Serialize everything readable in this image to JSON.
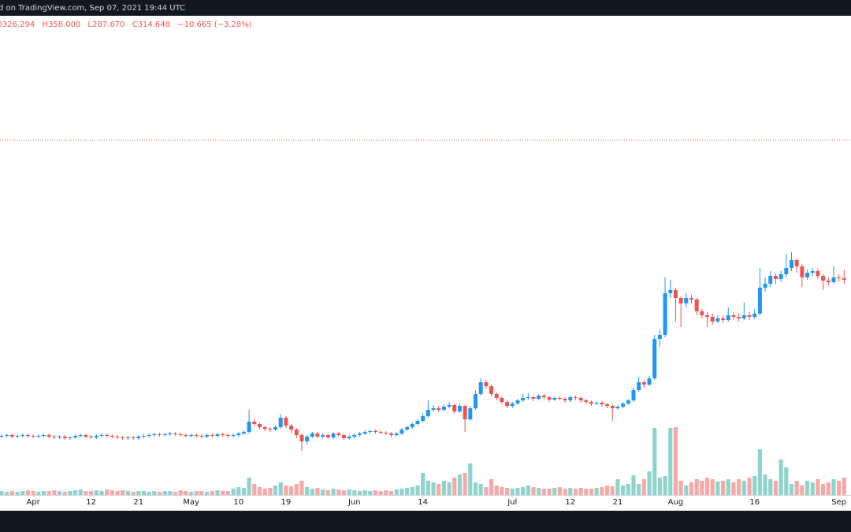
{
  "header": {
    "source": "d on TradingView.com, Sep 07, 2021 19:44 UTC"
  },
  "legend": [
    "O326.294",
    "H358.000",
    "L287.670",
    "C314.648",
    "−10.665 (−3.28%)"
  ],
  "chart_data": {
    "type": "candlestick",
    "up_color": "#2196f3",
    "down_color": "#ef5350",
    "volume_up_color": "#8fd4cc",
    "volume_down_color": "#f7a9a7",
    "price_line": 462,
    "price_line_color": "#ef5350",
    "xlim": [
      -0.3,
      161.3
    ],
    "xticks": [
      {
        "value": 6,
        "label": "Apr"
      },
      {
        "value": 17,
        "label": "12"
      },
      {
        "value": 26,
        "label": "21"
      },
      {
        "value": 36,
        "label": "May"
      },
      {
        "value": 45,
        "label": "10"
      },
      {
        "value": 54,
        "label": "19"
      },
      {
        "value": 67,
        "label": "Jun"
      },
      {
        "value": 80,
        "label": "14"
      },
      {
        "value": 97,
        "label": "Jul"
      },
      {
        "value": 108,
        "label": "12"
      },
      {
        "value": 117,
        "label": "21"
      },
      {
        "value": 128,
        "label": "Aug"
      },
      {
        "value": 143,
        "label": "16"
      },
      {
        "value": 159,
        "label": "Sep"
      }
    ],
    "ylim": [
      0,
      620
    ],
    "vlim": [
      0,
      100
    ],
    "open": [
      86,
      87,
      88,
      86,
      87,
      88,
      87,
      86,
      87,
      88,
      86,
      85,
      86,
      84,
      85,
      87,
      88,
      86,
      85,
      87,
      88,
      87,
      86,
      85,
      84,
      85,
      84,
      86,
      87,
      88,
      89,
      88,
      89,
      90,
      89,
      88,
      87,
      88,
      87,
      86,
      88,
      87,
      89,
      88,
      87,
      88,
      90,
      92,
      105,
      102,
      98,
      96,
      95,
      98,
      110,
      100,
      95,
      88,
      80,
      86,
      90,
      86,
      88,
      85,
      90,
      88,
      84,
      86,
      88,
      90,
      92,
      93,
      92,
      91,
      90,
      88,
      90,
      95,
      98,
      102,
      106,
      112,
      120,
      122,
      120,
      124,
      126,
      118,
      125,
      108,
      122,
      140,
      155,
      150,
      140,
      135,
      130,
      125,
      128,
      132,
      135,
      136,
      134,
      138,
      136,
      133,
      135,
      134,
      132,
      136,
      135,
      132,
      130,
      128,
      129,
      127,
      125,
      122,
      124,
      128,
      132,
      145,
      155,
      152,
      160,
      210,
      215,
      268,
      272,
      262,
      255,
      262,
      260,
      245,
      240,
      238,
      232,
      236,
      234,
      240,
      238,
      236,
      240,
      238,
      242,
      275,
      280,
      290,
      286,
      292,
      300,
      310,
      302,
      288,
      294,
      296,
      290,
      284,
      282,
      288,
      287
    ],
    "high": [
      89,
      90,
      90,
      89,
      90,
      90,
      89,
      89,
      90,
      90,
      88,
      88,
      88,
      87,
      89,
      90,
      90,
      88,
      89,
      90,
      90,
      89,
      88,
      87,
      87,
      87,
      88,
      89,
      90,
      91,
      91,
      91,
      92,
      92,
      91,
      90,
      90,
      90,
      89,
      90,
      90,
      91,
      91,
      90,
      90,
      92,
      94,
      120,
      108,
      104,
      100,
      98,
      100,
      115,
      112,
      102,
      97,
      90,
      88,
      92,
      92,
      90,
      90,
      92,
      92,
      90,
      88,
      90,
      92,
      94,
      95,
      95,
      94,
      93,
      92,
      92,
      97,
      100,
      104,
      108,
      116,
      132,
      126,
      125,
      127,
      130,
      128,
      128,
      127,
      125,
      145,
      160,
      158,
      152,
      142,
      137,
      132,
      130,
      134,
      140,
      141,
      138,
      140,
      140,
      138,
      137,
      137,
      136,
      138,
      138,
      137,
      134,
      132,
      131,
      131,
      129,
      127,
      126,
      130,
      134,
      148,
      162,
      158,
      163,
      215,
      222,
      288,
      285,
      275,
      264,
      268,
      266,
      262,
      248,
      244,
      242,
      240,
      240,
      250,
      244,
      242,
      256,
      244,
      248,
      300,
      288,
      296,
      293,
      296,
      318,
      320,
      312,
      305,
      298,
      300,
      299,
      292,
      288,
      302,
      292,
      298
    ],
    "low": [
      84,
      85,
      84,
      84,
      85,
      85,
      84,
      84,
      85,
      84,
      83,
      83,
      82,
      82,
      83,
      85,
      84,
      83,
      83,
      85,
      85,
      84,
      83,
      82,
      82,
      82,
      82,
      84,
      85,
      86,
      86,
      86,
      87,
      87,
      86,
      85,
      85,
      85,
      84,
      84,
      85,
      85,
      86,
      85,
      85,
      86,
      88,
      90,
      99,
      95,
      93,
      92,
      93,
      96,
      97,
      90,
      84,
      68,
      76,
      84,
      84,
      83,
      83,
      83,
      86,
      82,
      82,
      84,
      86,
      88,
      90,
      90,
      89,
      88,
      85,
      86,
      88,
      93,
      96,
      100,
      104,
      110,
      118,
      117,
      118,
      122,
      115,
      116,
      92,
      106,
      120,
      138,
      147,
      137,
      132,
      127,
      122,
      122,
      126,
      130,
      133,
      131,
      132,
      133,
      130,
      131,
      132,
      129,
      130,
      132,
      129,
      127,
      125,
      126,
      124,
      122,
      106,
      120,
      122,
      126,
      130,
      143,
      148,
      150,
      158,
      200,
      212,
      262,
      232,
      225,
      250,
      255,
      240,
      236,
      225,
      228,
      230,
      230,
      232,
      234,
      232,
      234,
      234,
      235,
      240,
      270,
      276,
      280,
      282,
      288,
      296,
      294,
      276,
      285,
      290,
      286,
      272,
      278,
      280,
      283,
      280
    ],
    "close": [
      87,
      88,
      86,
      87,
      88,
      87,
      86,
      87,
      88,
      86,
      85,
      86,
      84,
      85,
      87,
      88,
      86,
      85,
      87,
      88,
      87,
      86,
      85,
      84,
      85,
      84,
      86,
      87,
      88,
      89,
      88,
      89,
      90,
      89,
      88,
      87,
      88,
      87,
      86,
      88,
      87,
      89,
      88,
      87,
      88,
      90,
      92,
      105,
      102,
      98,
      96,
      95,
      98,
      110,
      100,
      95,
      88,
      80,
      86,
      90,
      86,
      88,
      85,
      90,
      88,
      84,
      86,
      88,
      90,
      92,
      93,
      92,
      91,
      90,
      88,
      90,
      95,
      98,
      102,
      106,
      112,
      120,
      122,
      120,
      124,
      126,
      118,
      125,
      108,
      122,
      140,
      155,
      150,
      140,
      135,
      130,
      125,
      128,
      132,
      135,
      136,
      134,
      138,
      136,
      133,
      135,
      134,
      132,
      136,
      135,
      132,
      130,
      128,
      129,
      127,
      125,
      122,
      124,
      128,
      132,
      145,
      155,
      152,
      160,
      210,
      215,
      268,
      272,
      262,
      255,
      262,
      260,
      245,
      240,
      238,
      232,
      236,
      234,
      240,
      238,
      236,
      240,
      238,
      242,
      275,
      280,
      290,
      286,
      292,
      300,
      310,
      302,
      288,
      294,
      296,
      290,
      284,
      282,
      288,
      287,
      285
    ],
    "volume": [
      5,
      4,
      5,
      4,
      5,
      6,
      5,
      4,
      5,
      5,
      6,
      5,
      4,
      5,
      6,
      7,
      5,
      5,
      6,
      5,
      7,
      6,
      5,
      6,
      5,
      4,
      5,
      5,
      4,
      5,
      4,
      5,
      5,
      4,
      6,
      5,
      4,
      5,
      5,
      4,
      5,
      6,
      5,
      5,
      8,
      10,
      9,
      22,
      14,
      10,
      8,
      9,
      12,
      16,
      12,
      11,
      14,
      18,
      10,
      8,
      9,
      7,
      6,
      8,
      7,
      6,
      7,
      6,
      5,
      6,
      5,
      6,
      5,
      6,
      5,
      7,
      8,
      9,
      10,
      12,
      28,
      18,
      16,
      14,
      18,
      16,
      22,
      26,
      28,
      40,
      16,
      14,
      10,
      20,
      12,
      10,
      9,
      8,
      9,
      10,
      12,
      10,
      9,
      8,
      8,
      9,
      10,
      8,
      9,
      8,
      9,
      8,
      8,
      9,
      10,
      12,
      11,
      20,
      12,
      14,
      25,
      14,
      20,
      30,
      85,
      22,
      24,
      85,
      86,
      18,
      12,
      16,
      20,
      18,
      22,
      20,
      17,
      18,
      20,
      16,
      20,
      18,
      22,
      24,
      58,
      26,
      20,
      18,
      45,
      35,
      14,
      18,
      12,
      18,
      16,
      20,
      14,
      16,
      20,
      18,
      22
    ]
  }
}
